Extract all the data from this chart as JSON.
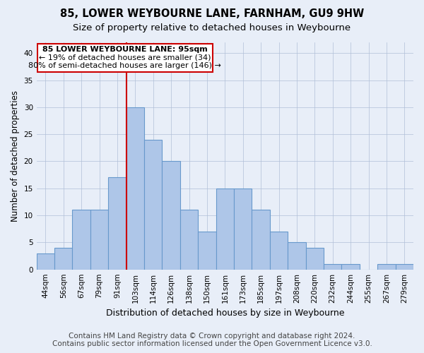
{
  "title": "85, LOWER WEYBOURNE LANE, FARNHAM, GU9 9HW",
  "subtitle": "Size of property relative to detached houses in Weybourne",
  "xlabel": "Distribution of detached houses by size in Weybourne",
  "ylabel": "Number of detached properties",
  "categories": [
    "44sqm",
    "56sqm",
    "67sqm",
    "79sqm",
    "91sqm",
    "103sqm",
    "114sqm",
    "126sqm",
    "138sqm",
    "150sqm",
    "161sqm",
    "173sqm",
    "185sqm",
    "197sqm",
    "208sqm",
    "220sqm",
    "232sqm",
    "244sqm",
    "255sqm",
    "267sqm",
    "279sqm"
  ],
  "values": [
    3,
    4,
    11,
    11,
    17,
    30,
    24,
    20,
    11,
    7,
    15,
    15,
    11,
    7,
    5,
    4,
    1,
    1,
    0,
    1,
    1
  ],
  "bar_color": "#aec6e8",
  "bar_edge_color": "#6899cc",
  "vline_x": 4.5,
  "annotation": {
    "text_line1": "85 LOWER WEYBOURNE LANE: 95sqm",
    "text_line2": "← 19% of detached houses are smaller (34)",
    "text_line3": "80% of semi-detached houses are larger (146) →"
  },
  "ylim": [
    0,
    42
  ],
  "yticks": [
    0,
    5,
    10,
    15,
    20,
    25,
    30,
    35,
    40
  ],
  "footer_line1": "Contains HM Land Registry data © Crown copyright and database right 2024.",
  "footer_line2": "Contains public sector information licensed under the Open Government Licence v3.0.",
  "bg_color": "#e8eef8",
  "plot_bg_color": "#e8eef8",
  "vline_color": "#cc0000",
  "box_edge_color": "#cc0000",
  "title_fontsize": 10.5,
  "subtitle_fontsize": 9.5,
  "annotation_fontsize": 8,
  "tick_fontsize": 7.5,
  "ylabel_fontsize": 8.5,
  "xlabel_fontsize": 9,
  "footer_fontsize": 7.5
}
